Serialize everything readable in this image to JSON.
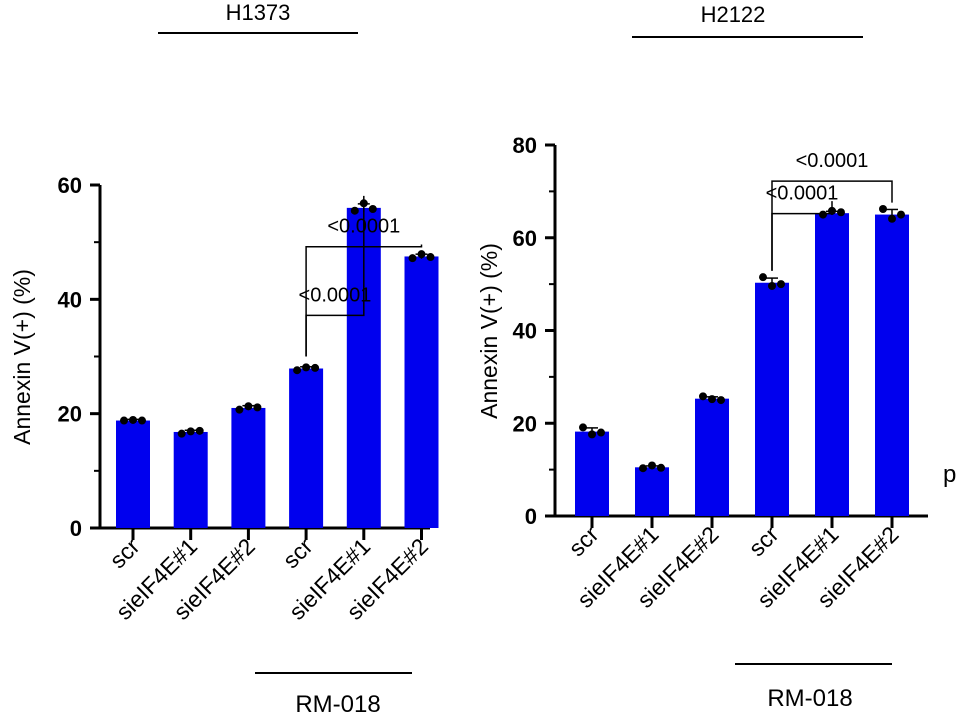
{
  "stray_text": "p",
  "colors": {
    "bar": "#0000ee",
    "axis": "#000000",
    "point": "#000000"
  },
  "chart_data": [
    {
      "type": "bar",
      "title": "H1373",
      "ylabel": "Annexin V(+) (%)",
      "xlabel": "",
      "ylim": [
        0,
        60
      ],
      "yticks": [
        0,
        20,
        40,
        60
      ],
      "categories": [
        "scr",
        "sieIF4E#1",
        "sieIF4E#2",
        "scr",
        "sieIF4E#1",
        "sieIF4E#2"
      ],
      "values": [
        18.8,
        16.8,
        21.0,
        27.9,
        56.0,
        47.5
      ],
      "points": [
        [
          18.8,
          18.9,
          18.8
        ],
        [
          16.5,
          16.9,
          17.0
        ],
        [
          20.7,
          21.3,
          21.1
        ],
        [
          27.6,
          28.1,
          28.0
        ],
        [
          55.5,
          56.8,
          55.8
        ],
        [
          47.2,
          47.9,
          47.4
        ]
      ],
      "errors": [
        0.2,
        0.3,
        0.4,
        0.3,
        0.7,
        0.4
      ],
      "group_label": "RM-018",
      "group_indices": [
        3,
        5
      ],
      "comparisons": [
        {
          "from": 3,
          "to": 4,
          "label": "<0.0001"
        },
        {
          "from": 3,
          "to": 5,
          "label": "<0.0001"
        }
      ]
    },
    {
      "type": "bar",
      "title": "H2122",
      "ylabel": "Annexin V(+) (%)",
      "xlabel": "",
      "ylim": [
        0,
        80
      ],
      "yticks": [
        0,
        20,
        40,
        60,
        80
      ],
      "categories": [
        "scr",
        "sieIF4E#1",
        "sieIF4E#2",
        "scr",
        "sieIF4E#1",
        "sieIF4E#2"
      ],
      "values": [
        18.2,
        10.5,
        25.3,
        50.3,
        65.3,
        65.0
      ],
      "points": [
        [
          19.1,
          17.6,
          18.0
        ],
        [
          10.3,
          10.9,
          10.4
        ],
        [
          25.8,
          25.2,
          25.0
        ],
        [
          51.5,
          49.6,
          50.0
        ],
        [
          65.0,
          65.8,
          65.5
        ],
        [
          66.2,
          64.1,
          65.0
        ]
      ],
      "errors": [
        0.8,
        0.3,
        0.4,
        1.0,
        0.4,
        1.1
      ],
      "group_label": "RM-018",
      "group_indices": [
        3,
        5
      ],
      "comparisons": [
        {
          "from": 3,
          "to": 4,
          "label": "<0.0001"
        },
        {
          "from": 3,
          "to": 5,
          "label": "<0.0001"
        }
      ]
    }
  ]
}
